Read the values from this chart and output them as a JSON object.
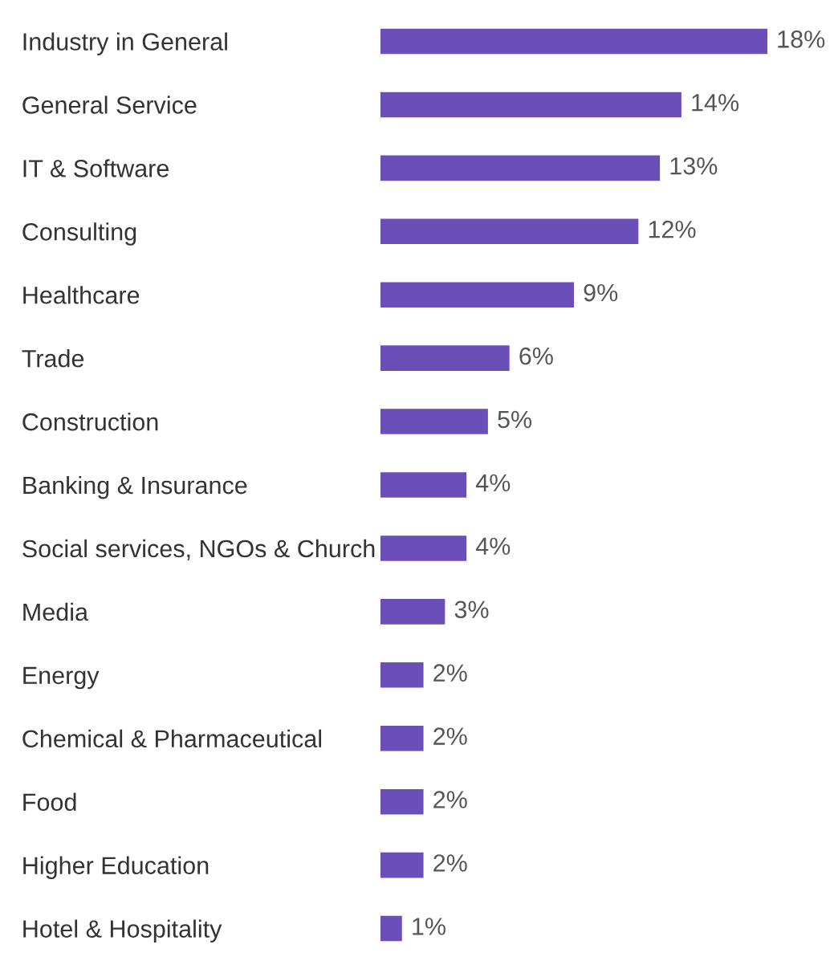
{
  "chart_data": {
    "type": "bar",
    "orientation": "horizontal",
    "categories": [
      "Industry in General",
      "General Service",
      "IT & Software",
      "Consulting",
      "Healthcare",
      "Trade",
      "Construction",
      "Banking & Insurance",
      "Social services, NGOs & Church",
      "Media",
      "Energy",
      "Chemical & Pharmaceutical",
      "Food",
      "Higher Education",
      "Hotel & Hospitality"
    ],
    "values": [
      18,
      14,
      13,
      12,
      9,
      6,
      5,
      4,
      4,
      3,
      2,
      2,
      2,
      2,
      1
    ],
    "value_labels": [
      "18%",
      "14%",
      "13%",
      "12%",
      "9%",
      "6%",
      "5%",
      "4%",
      "4%",
      "3%",
      "2%",
      "2%",
      "2%",
      "2%",
      "1%"
    ],
    "color": "#6a4fb8",
    "grid": false,
    "legend": false,
    "tick_labels": "y"
  }
}
